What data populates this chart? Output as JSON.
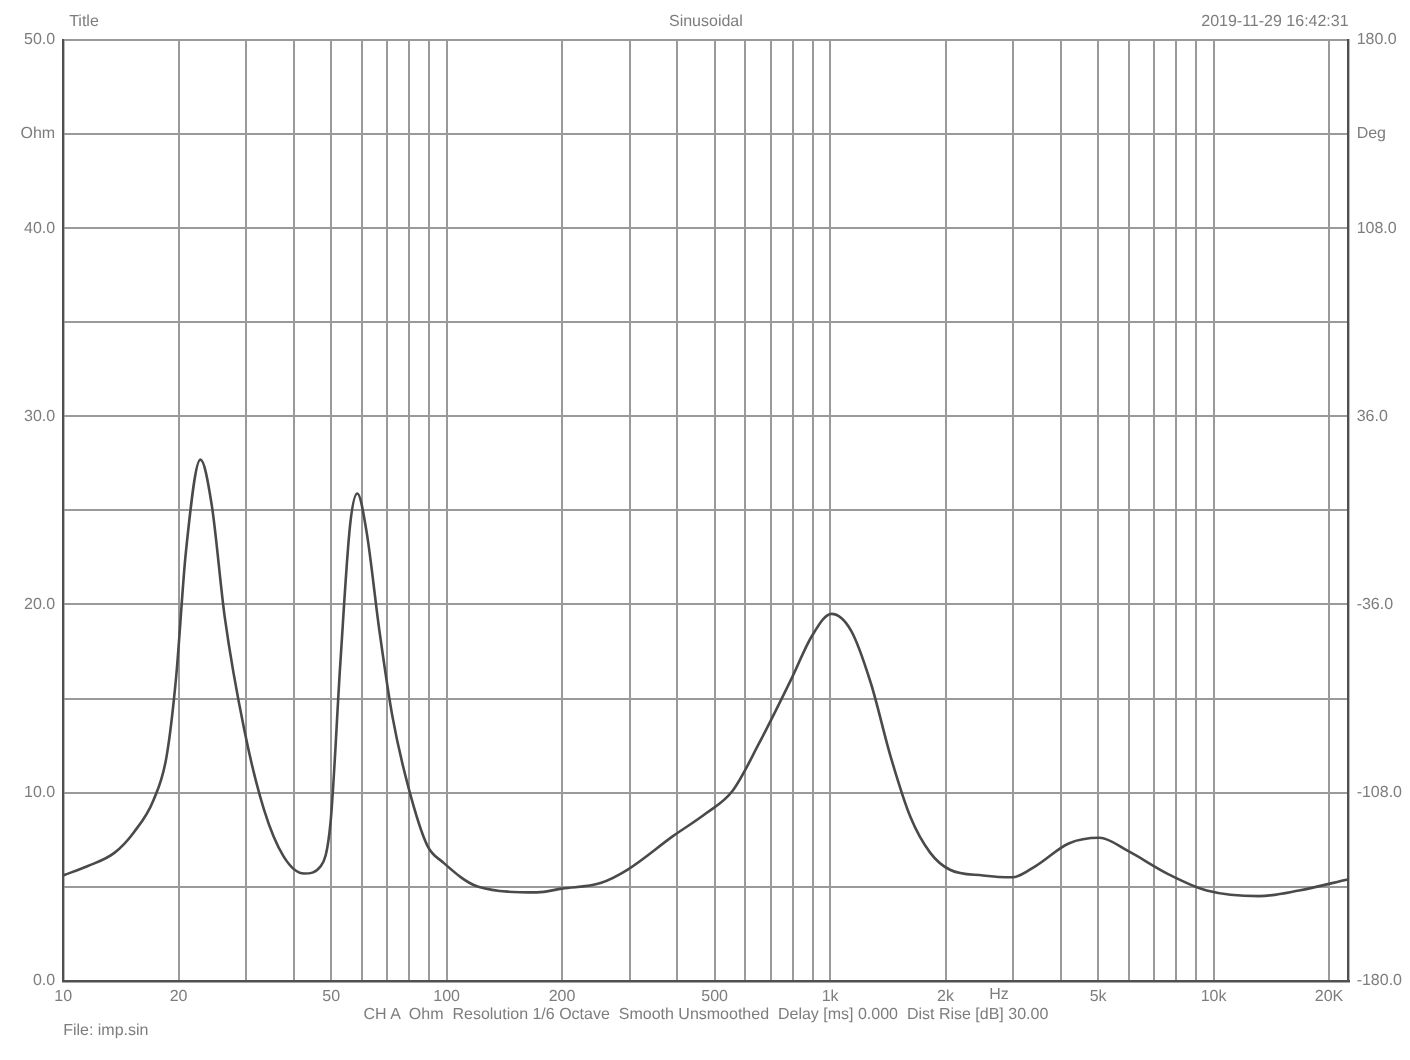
{
  "chart_data": {
    "type": "line",
    "title": "Title",
    "subtitle": "Sinusoidal",
    "annotations": [
      "2019-11-29 16:42:31",
      "CH A  Ohm  Resolution 1/6 Octave  Smooth Unsmoothed  Delay [ms] 0.000  Dist Rise [dB] 30.00",
      "File: imp.sin"
    ],
    "xlabel": "Hz",
    "ylabel": "Ohm",
    "y2label": "Deg",
    "log": "x",
    "grid": true,
    "legend": false,
    "marker": "none",
    "x": [
      10,
      11.6,
      13.6,
      15.3,
      17.2,
      18.6,
      19.7,
      20.9,
      22.8,
      24.4,
      26.4,
      29.7,
      33.4,
      37.6,
      42.5,
      47,
      49.8,
      52.8,
      56,
      58.5,
      61.8,
      66.8,
      72.3,
      79.7,
      89,
      97.8,
      121,
      172,
      200,
      252,
      296,
      390,
      475,
      557,
      652,
      795,
      895,
      1008,
      1135,
      1278,
      1439,
      1620,
      1825,
      2054,
      2504,
      2990,
      3435,
      4190,
      5040,
      5980,
      7570,
      9600,
      13150,
      16700,
      22500
    ],
    "series": [
      {
        "color": "#4a4a4a",
        "values": [
          5.6,
          6.1,
          6.8,
          7.9,
          9.6,
          11.9,
          16.1,
          22.8,
          27.7,
          25.3,
          19.3,
          13.3,
          9.1,
          6.6,
          5.7,
          6.1,
          8.4,
          16.8,
          24.2,
          25.9,
          23.9,
          18.6,
          14.0,
          10.2,
          7.2,
          6.3,
          5.0,
          4.7,
          4.9,
          5.2,
          5.9,
          7.7,
          8.9,
          10.1,
          12.6,
          16.1,
          18.3,
          19.5,
          18.6,
          15.8,
          11.9,
          8.7,
          6.8,
          5.9,
          5.6,
          5.5,
          6.1,
          7.3,
          7.6,
          6.9,
          5.7,
          4.8,
          4.5,
          4.8,
          5.4
        ]
      }
    ],
    "xlim": [
      10,
      22500
    ],
    "xticks": [
      10,
      20,
      {
        "value": 30,
        "label": null
      },
      {
        "value": 40,
        "label": null
      },
      50,
      {
        "value": 60,
        "label": null
      },
      {
        "value": 70,
        "label": null
      },
      {
        "value": 80,
        "label": null
      },
      {
        "value": 90,
        "label": null
      },
      100,
      200,
      {
        "value": 300,
        "label": null
      },
      {
        "value": 400,
        "label": null
      },
      500,
      {
        "value": 600,
        "label": null
      },
      {
        "value": 700,
        "label": null
      },
      {
        "value": 800,
        "label": null
      },
      {
        "value": 900,
        "label": null
      },
      {
        "value": 1000,
        "label": "1k"
      },
      {
        "value": 2000,
        "label": "2k"
      },
      {
        "value": 3000,
        "label": null
      },
      {
        "value": 4000,
        "label": null
      },
      {
        "value": 5000,
        "label": "5k"
      },
      {
        "value": 6000,
        "label": null
      },
      {
        "value": 7000,
        "label": null
      },
      {
        "value": 8000,
        "label": null
      },
      {
        "value": 9000,
        "label": null
      },
      {
        "value": 10000,
        "label": "10k"
      },
      {
        "value": 20000,
        "label": "20K"
      }
    ],
    "ylim": [
      0,
      50
    ],
    "yticks": [
      {
        "value": 0,
        "label": "0.0"
      },
      {
        "value": 5,
        "label": null
      },
      {
        "value": 10,
        "label": "10.0"
      },
      {
        "value": 15,
        "label": null
      },
      {
        "value": 20,
        "label": "20.0"
      },
      {
        "value": 25,
        "label": null
      },
      {
        "value": 30,
        "label": "30.0"
      },
      {
        "value": 35,
        "label": null
      },
      {
        "value": 40,
        "label": "40.0"
      },
      {
        "value": 45,
        "label": null
      },
      {
        "value": 50,
        "label": "50.0"
      }
    ],
    "y2lim": [
      -180,
      180
    ],
    "y2ticks": [
      {
        "value": -180,
        "label": "-180.0"
      },
      {
        "value": -108,
        "label": "-108.0"
      },
      {
        "value": -36,
        "label": "-36.0"
      },
      {
        "value": 36,
        "label": "36.0"
      },
      {
        "value": 108,
        "label": "108.0"
      },
      {
        "value": 180,
        "label": "180.0"
      }
    ]
  }
}
